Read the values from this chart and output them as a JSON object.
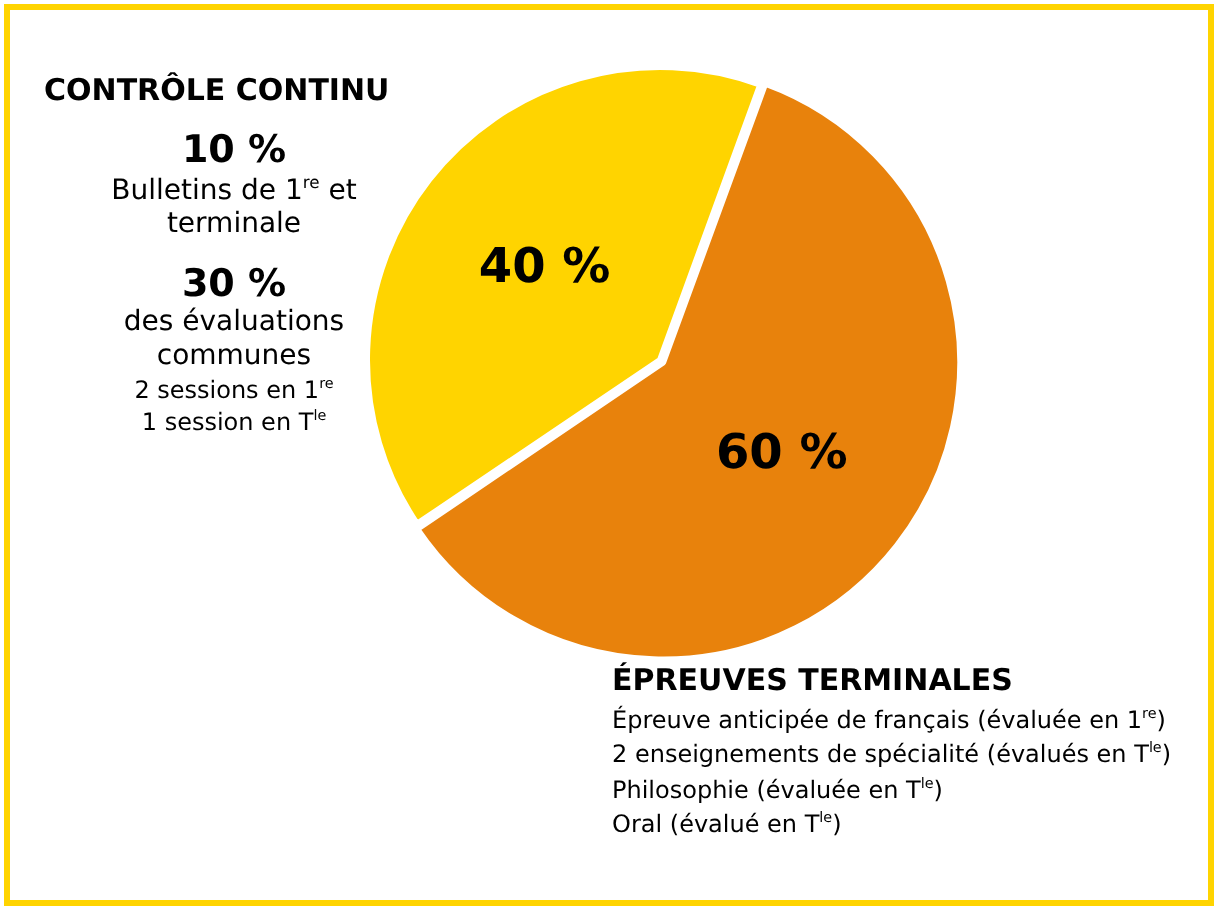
{
  "chart_data": {
    "type": "pie",
    "categories": [
      "CONTRÔLE CONTINU",
      "ÉPREUVES TERMINALES"
    ],
    "values": [
      40,
      60
    ],
    "colors": [
      "#ffd400",
      "#e8820c"
    ],
    "value_labels": [
      "40 %",
      "60 %"
    ],
    "legend": false,
    "annotations": [
      "10 %",
      "Bulletins de 1$^{re}$ et terminale",
      "30 %",
      "des évaluations communes",
      "2 sessions en 1$^{re}$",
      "1 session en T$^{le}$",
      "Épreuve anticipée de français (évaluée en 1$^{re}$)",
      "2 enseignements de spécialité (évalués en T$^{le}$)",
      "Philosophie (évaluée en T$^{le}$)",
      "Oral (évalué en T$^{le}$)"
    ]
  }
}
